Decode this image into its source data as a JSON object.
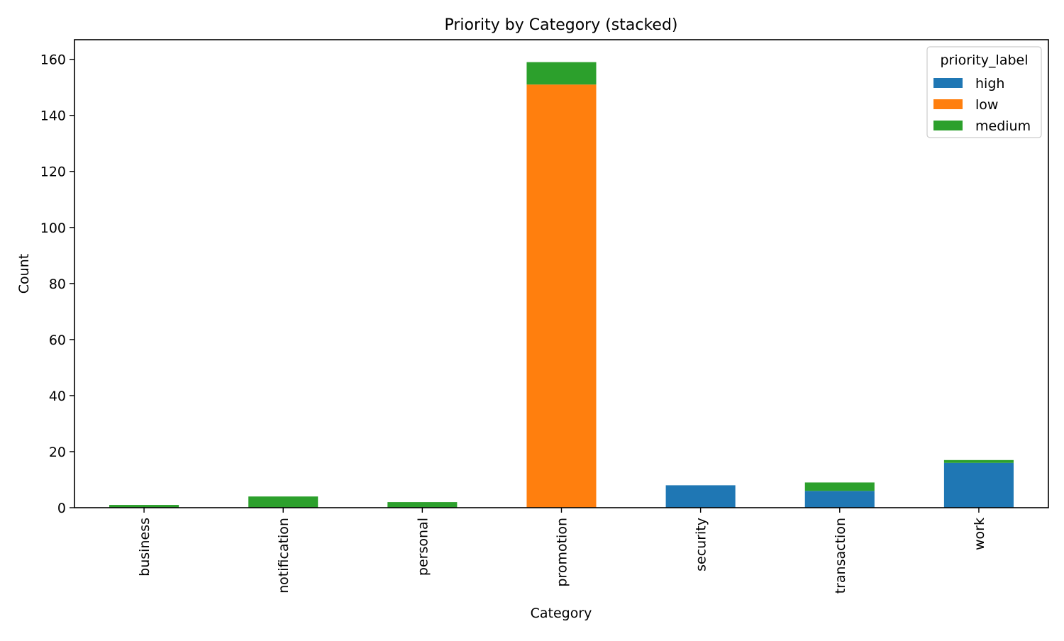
{
  "chart_data": {
    "type": "bar",
    "stacked": true,
    "title": "Priority by Category (stacked)",
    "xlabel": "Category",
    "ylabel": "Count",
    "ylim": [
      0,
      167
    ],
    "yticks": [
      0,
      20,
      40,
      60,
      80,
      100,
      120,
      140,
      160
    ],
    "grid": false,
    "legend": {
      "title": "priority_label",
      "placement": "top-right"
    },
    "categories": [
      "business",
      "notification",
      "personal",
      "promotion",
      "security",
      "transaction",
      "work"
    ],
    "series": [
      {
        "name": "high",
        "color": "#1f77b4",
        "values": [
          0,
          0,
          0,
          0,
          8,
          6,
          16
        ]
      },
      {
        "name": "low",
        "color": "#ff7f0e",
        "values": [
          0,
          0,
          0,
          151,
          0,
          0,
          0
        ]
      },
      {
        "name": "medium",
        "color": "#2ca02c",
        "values": [
          1,
          4,
          2,
          8,
          0,
          3,
          1
        ]
      }
    ]
  }
}
